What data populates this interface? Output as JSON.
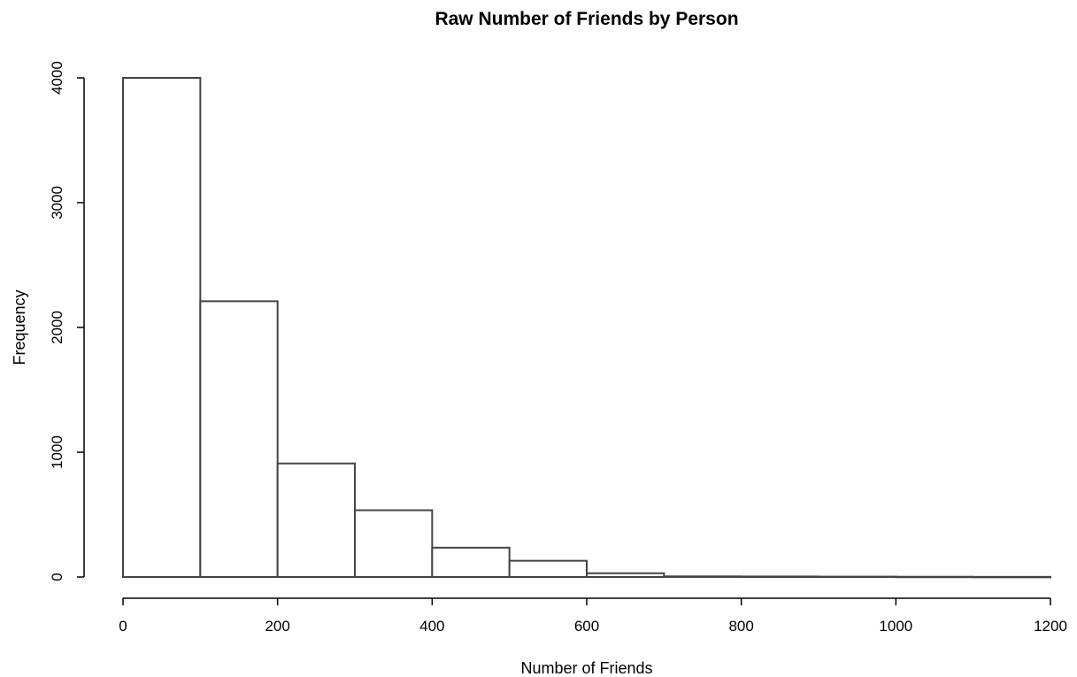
{
  "chart_data": {
    "type": "bar",
    "title": "Raw Number of Friends by Person",
    "xlabel": "Number of Friends",
    "ylabel": "Frequency",
    "bins": [
      {
        "start": 0,
        "end": 100,
        "value": 4000
      },
      {
        "start": 100,
        "end": 200,
        "value": 2210
      },
      {
        "start": 200,
        "end": 300,
        "value": 910
      },
      {
        "start": 300,
        "end": 400,
        "value": 535
      },
      {
        "start": 400,
        "end": 500,
        "value": 235
      },
      {
        "start": 500,
        "end": 600,
        "value": 130
      },
      {
        "start": 600,
        "end": 700,
        "value": 30
      },
      {
        "start": 700,
        "end": 800,
        "value": 5
      },
      {
        "start": 800,
        "end": 900,
        "value": 4
      },
      {
        "start": 900,
        "end": 1000,
        "value": 3
      },
      {
        "start": 1000,
        "end": 1100,
        "value": 2
      },
      {
        "start": 1100,
        "end": 1200,
        "value": 1
      }
    ],
    "xlim": [
      0,
      1200
    ],
    "ylim": [
      0,
      4000
    ],
    "x_ticks": [
      "0",
      "200",
      "400",
      "600",
      "800",
      "1000",
      "1200"
    ],
    "y_ticks": [
      "0",
      "1000",
      "2000",
      "3000",
      "4000"
    ],
    "grid": false,
    "legend": "none"
  }
}
